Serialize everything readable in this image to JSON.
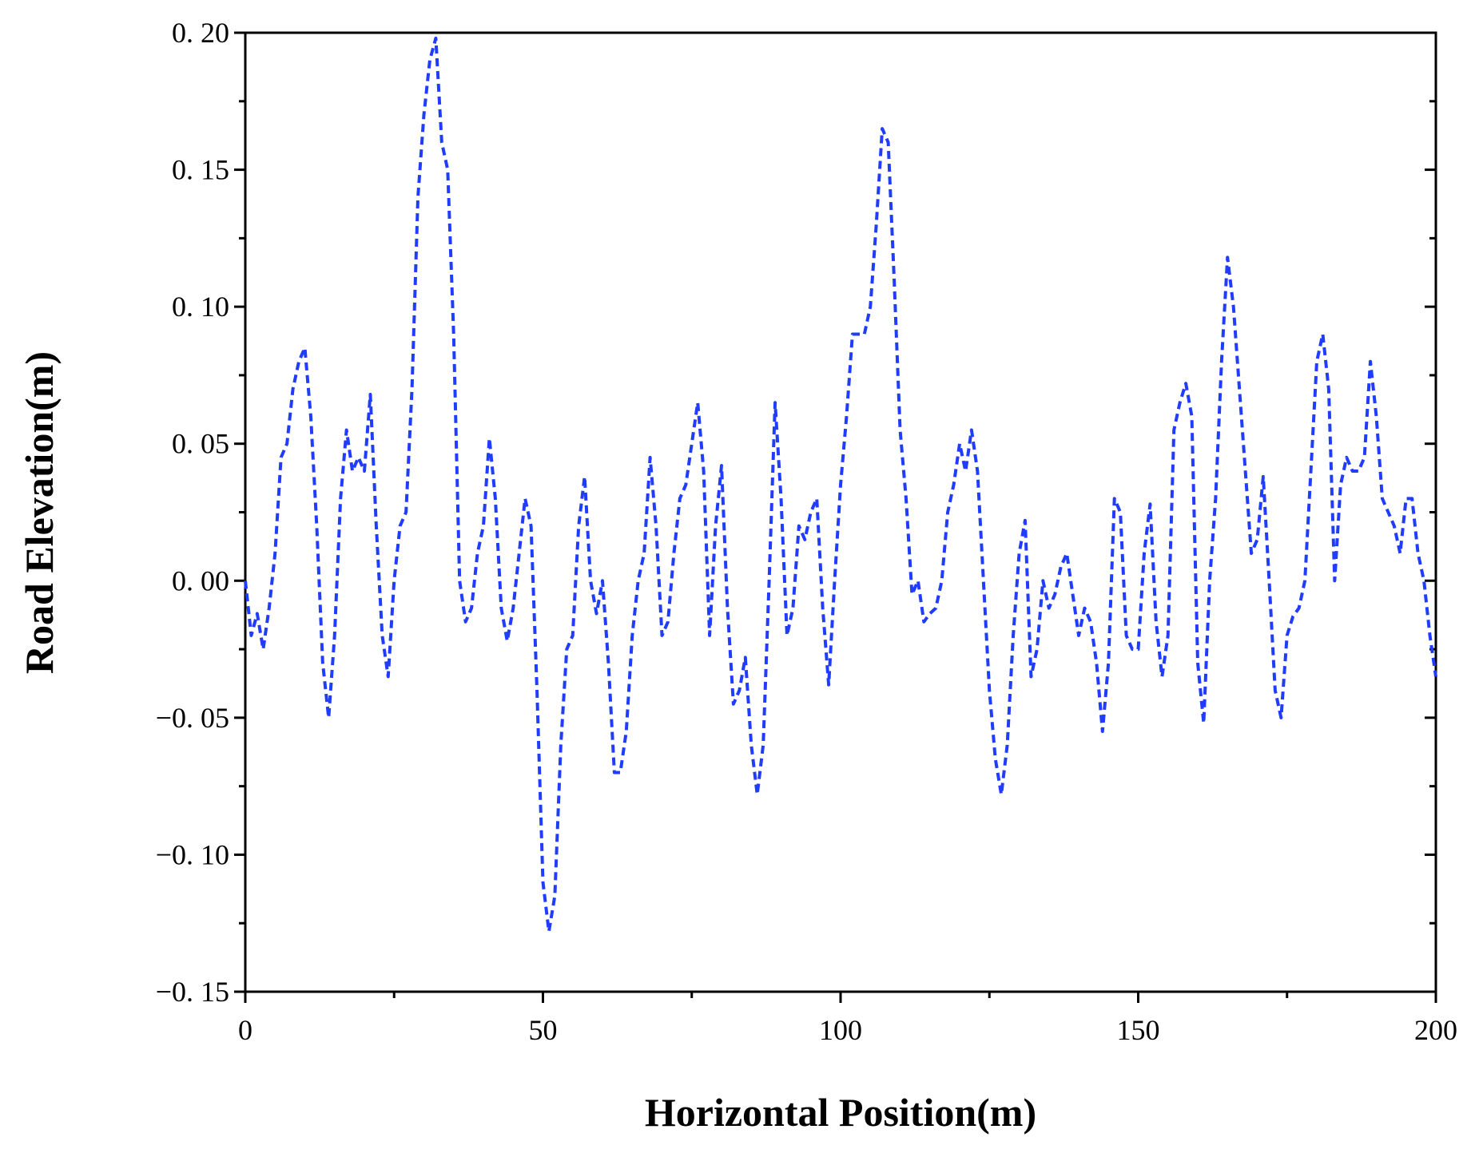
{
  "chart_data": {
    "type": "line",
    "x_label": "Horizontal Position(m)",
    "y_label": "Road Elevation(m)",
    "xlim": [
      0,
      200
    ],
    "ylim": [
      -0.15,
      0.2
    ],
    "xticks": [
      0,
      50,
      100,
      150,
      200
    ],
    "xminorticks": [
      25,
      75,
      125,
      175
    ],
    "yticks": [
      {
        "value": -0.15,
        "label": "−0. 15"
      },
      {
        "value": -0.1,
        "label": "−0. 10"
      },
      {
        "value": -0.05,
        "label": "−0. 05"
      },
      {
        "value": 0,
        "label": "0. 00"
      },
      {
        "value": 0.05,
        "label": "0. 05"
      },
      {
        "value": 0.1,
        "label": "0. 10"
      },
      {
        "value": 0.15,
        "label": "0. 15"
      },
      {
        "value": 0.2,
        "label": "0. 20"
      }
    ],
    "yminorticks": [
      -0.125,
      -0.075,
      -0.025,
      0.025,
      0.075,
      0.125,
      0.175
    ],
    "grid": false,
    "series": [
      {
        "color": "#1f3cff",
        "x": [
          0,
          1,
          2,
          3,
          4,
          5,
          6,
          7,
          8,
          9,
          10,
          11,
          12,
          13,
          14,
          15,
          16,
          17,
          18,
          19,
          20,
          21,
          22,
          23,
          24,
          25,
          26,
          27,
          28,
          29,
          30,
          31,
          32,
          33,
          34,
          35,
          36,
          37,
          38,
          39,
          40,
          41,
          42,
          43,
          44,
          45,
          46,
          47,
          48,
          49,
          50,
          51,
          52,
          53,
          54,
          55,
          56,
          57,
          58,
          59,
          60,
          61,
          62,
          63,
          64,
          65,
          66,
          67,
          68,
          69,
          70,
          71,
          72,
          73,
          74,
          75,
          76,
          77,
          78,
          79,
          80,
          81,
          82,
          83,
          84,
          85,
          86,
          87,
          88,
          89,
          90,
          91,
          92,
          93,
          94,
          95,
          96,
          97,
          98,
          99,
          100,
          101,
          102,
          103,
          104,
          105,
          106,
          107,
          108,
          109,
          110,
          111,
          112,
          113,
          114,
          115,
          116,
          117,
          118,
          119,
          120,
          121,
          122,
          123,
          124,
          125,
          126,
          127,
          128,
          129,
          130,
          131,
          132,
          133,
          134,
          135,
          136,
          137,
          138,
          139,
          140,
          141,
          142,
          143,
          144,
          145,
          146,
          147,
          148,
          149,
          150,
          151,
          152,
          153,
          154,
          155,
          156,
          157,
          158,
          159,
          160,
          161,
          162,
          163,
          164,
          165,
          166,
          167,
          168,
          169,
          170,
          171,
          172,
          173,
          174,
          175,
          176,
          177,
          178,
          179,
          180,
          181,
          182,
          183,
          184,
          185,
          186,
          187,
          188,
          189,
          190,
          191,
          192,
          193,
          194,
          195,
          196,
          197,
          198,
          199,
          200
        ],
        "values": [
          0.0,
          -0.02,
          -0.012,
          -0.025,
          -0.01,
          0.01,
          0.045,
          0.05,
          0.07,
          0.08,
          0.085,
          0.06,
          0.02,
          -0.03,
          -0.05,
          -0.02,
          0.03,
          0.055,
          0.04,
          0.045,
          0.04,
          0.068,
          0.02,
          -0.02,
          -0.035,
          0.0,
          0.02,
          0.025,
          0.07,
          0.14,
          0.17,
          0.19,
          0.198,
          0.16,
          0.15,
          0.09,
          0.0,
          -0.015,
          -0.01,
          0.01,
          0.02,
          0.052,
          0.03,
          -0.01,
          -0.022,
          -0.01,
          0.01,
          0.03,
          0.02,
          -0.04,
          -0.11,
          -0.128,
          -0.115,
          -0.06,
          -0.025,
          -0.02,
          0.02,
          0.038,
          0.0,
          -0.012,
          0.0,
          -0.03,
          -0.07,
          -0.07,
          -0.055,
          -0.02,
          0.0,
          0.01,
          0.045,
          0.02,
          -0.02,
          -0.015,
          0.01,
          0.03,
          0.035,
          0.05,
          0.065,
          0.04,
          -0.02,
          0.02,
          0.042,
          -0.01,
          -0.045,
          -0.04,
          -0.028,
          -0.06,
          -0.078,
          -0.06,
          0.0,
          0.065,
          0.03,
          -0.02,
          -0.01,
          0.02,
          0.015,
          0.025,
          0.03,
          -0.01,
          -0.038,
          0.0,
          0.035,
          0.06,
          0.09,
          0.09,
          0.09,
          0.1,
          0.13,
          0.165,
          0.16,
          0.11,
          0.055,
          0.03,
          -0.005,
          0.0,
          -0.015,
          -0.012,
          -0.01,
          0.0,
          0.025,
          0.035,
          0.05,
          0.04,
          0.055,
          0.04,
          0.0,
          -0.04,
          -0.065,
          -0.078,
          -0.06,
          -0.02,
          0.01,
          0.022,
          -0.035,
          -0.025,
          0.0,
          -0.01,
          -0.005,
          0.005,
          0.01,
          -0.005,
          -0.02,
          -0.01,
          -0.015,
          -0.03,
          -0.055,
          -0.03,
          0.03,
          0.025,
          -0.02,
          -0.025,
          -0.025,
          0.01,
          0.028,
          -0.015,
          -0.035,
          -0.02,
          0.055,
          0.065,
          0.072,
          0.06,
          -0.03,
          -0.052,
          0.0,
          0.03,
          0.08,
          0.118,
          0.1,
          0.07,
          0.04,
          0.01,
          0.015,
          0.038,
          0.0,
          -0.04,
          -0.05,
          -0.02,
          -0.013,
          -0.01,
          0.0,
          0.04,
          0.08,
          0.09,
          0.07,
          0.0,
          0.035,
          0.045,
          0.04,
          0.04,
          0.045,
          0.08,
          0.06,
          0.03,
          0.025,
          0.02,
          0.01,
          0.03,
          0.03,
          0.01,
          0.0,
          -0.02,
          -0.035
        ]
      }
    ]
  }
}
